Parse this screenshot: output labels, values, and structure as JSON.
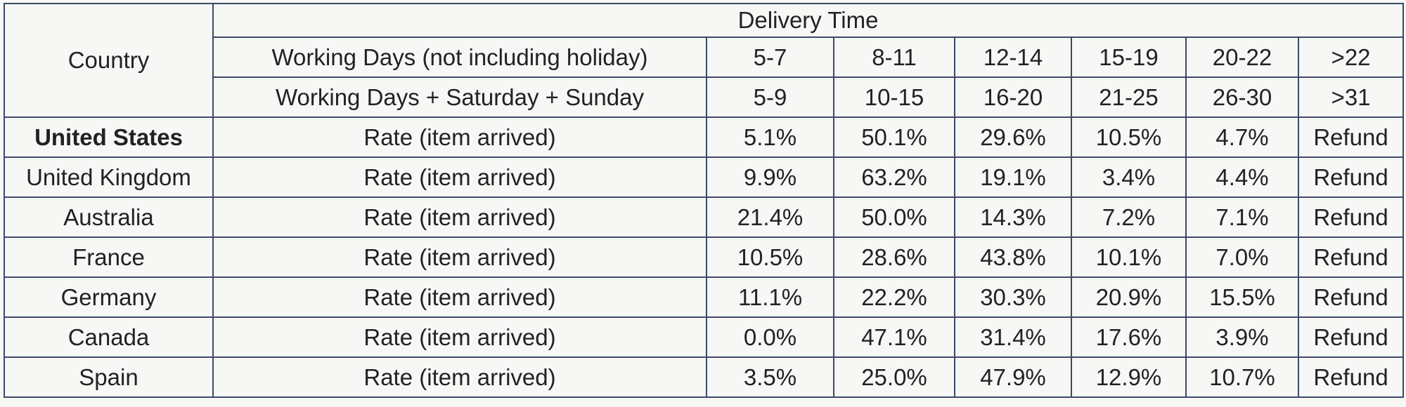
{
  "table": {
    "header": {
      "country": "Country",
      "group": "Delivery Time",
      "working_days": {
        "label": "Working Days (not including holiday)",
        "ranges": [
          "5-7",
          "8-11",
          "12-14",
          "15-19",
          "20-22",
          ">22"
        ]
      },
      "calendar_days": {
        "label": "Working Days + Saturday + Sunday",
        "ranges": [
          "5-9",
          "10-15",
          "16-20",
          "21-25",
          "26-30",
          ">31"
        ]
      }
    },
    "rows": [
      {
        "country": "United States",
        "measure": "Rate (item arrived)",
        "cells": [
          "5.1%",
          "50.1%",
          "29.6%",
          "10.5%",
          "4.7%",
          "Refund"
        ]
      },
      {
        "country": "United Kingdom",
        "measure": "Rate (item arrived)",
        "cells": [
          "9.9%",
          "63.2%",
          "19.1%",
          "3.4%",
          "4.4%",
          "Refund"
        ]
      },
      {
        "country": "Australia",
        "measure": "Rate (item arrived)",
        "cells": [
          "21.4%",
          "50.0%",
          "14.3%",
          "7.2%",
          "7.1%",
          "Refund"
        ]
      },
      {
        "country": "France",
        "measure": "Rate (item arrived)",
        "cells": [
          "10.5%",
          "28.6%",
          "43.8%",
          "10.1%",
          "7.0%",
          "Refund"
        ]
      },
      {
        "country": "Germany",
        "measure": "Rate (item arrived)",
        "cells": [
          "11.1%",
          "22.2%",
          "30.3%",
          "20.9%",
          "15.5%",
          "Refund"
        ]
      },
      {
        "country": "Canada",
        "measure": "Rate (item arrived)",
        "cells": [
          "0.0%",
          "47.1%",
          "31.4%",
          "17.6%",
          "3.9%",
          "Refund"
        ]
      },
      {
        "country": "Spain",
        "measure": "Rate (item arrived)",
        "cells": [
          "3.5%",
          "25.0%",
          "47.9%",
          "12.9%",
          "10.7%",
          "Refund"
        ]
      }
    ]
  }
}
